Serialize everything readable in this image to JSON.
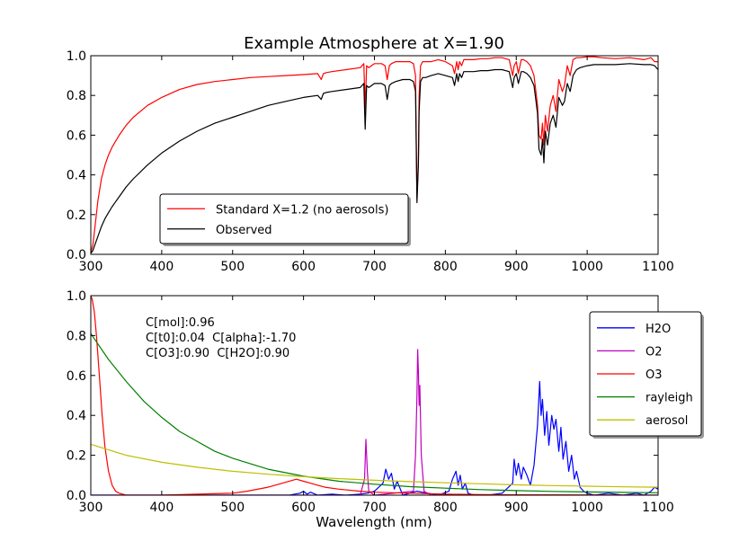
{
  "figure": {
    "title": "Example Atmosphere at X=1.90",
    "xlabel": "Wavelength (nm)"
  },
  "chart_data": [
    {
      "type": "line",
      "title": "Example Atmosphere at X=1.90",
      "xlabel": "",
      "ylabel": "",
      "xlim": [
        300,
        1100
      ],
      "ylim": [
        0,
        1.0
      ],
      "xticks": [
        300,
        400,
        500,
        600,
        700,
        800,
        900,
        1000,
        1100
      ],
      "yticks": [
        0.0,
        0.2,
        0.4,
        0.6,
        0.8,
        1.0
      ],
      "grid": false,
      "legend_position": "lower-center",
      "series": [
        {
          "name": "Standard X=1.2 (no aerosols)",
          "color": "#ff0000",
          "x": [
            300,
            303,
            306,
            310,
            315,
            320,
            325,
            330,
            340,
            350,
            360,
            380,
            400,
            425,
            450,
            475,
            500,
            525,
            550,
            575,
            600,
            620,
            625,
            628,
            632,
            640,
            660,
            680,
            685,
            687,
            689,
            692,
            700,
            710,
            715,
            718,
            721,
            724,
            730,
            740,
            750,
            755,
            758,
            760,
            762,
            763,
            765,
            768,
            772,
            780,
            790,
            800,
            810,
            813,
            816,
            818,
            820,
            823,
            826,
            830,
            840,
            850,
            860,
            870,
            880,
            890,
            895,
            897,
            900,
            903,
            907,
            910,
            915,
            920,
            925,
            930,
            932,
            935,
            937,
            939,
            941,
            944,
            948,
            952,
            956,
            960,
            965,
            968,
            972,
            976,
            980,
            985,
            990,
            1000,
            1010,
            1020,
            1040,
            1060,
            1080,
            1090,
            1095,
            1100
          ],
          "y": [
            0.01,
            0.05,
            0.14,
            0.27,
            0.38,
            0.45,
            0.5,
            0.54,
            0.6,
            0.65,
            0.69,
            0.75,
            0.79,
            0.83,
            0.855,
            0.87,
            0.88,
            0.89,
            0.895,
            0.9,
            0.905,
            0.91,
            0.88,
            0.91,
            0.915,
            0.92,
            0.93,
            0.94,
            0.96,
            0.73,
            0.95,
            0.94,
            0.96,
            0.96,
            0.95,
            0.88,
            0.95,
            0.96,
            0.97,
            0.97,
            0.97,
            0.96,
            0.9,
            0.28,
            0.48,
            0.8,
            0.95,
            0.97,
            0.97,
            0.97,
            0.98,
            0.97,
            0.95,
            0.91,
            0.97,
            0.93,
            0.97,
            0.95,
            0.98,
            0.98,
            0.98,
            0.985,
            0.985,
            0.99,
            0.99,
            0.98,
            0.9,
            0.95,
            0.97,
            0.91,
            0.98,
            0.98,
            0.97,
            0.95,
            0.9,
            0.75,
            0.6,
            0.58,
            0.66,
            0.55,
            0.7,
            0.62,
            0.75,
            0.8,
            0.72,
            0.88,
            0.82,
            0.85,
            0.95,
            0.9,
            0.98,
            0.99,
            0.99,
            0.995,
            0.995,
            0.99,
            0.985,
            0.99,
            0.98,
            0.99,
            0.97,
            0.97
          ]
        },
        {
          "name": "Observed",
          "color": "#000000",
          "x": [
            300,
            303,
            306,
            310,
            315,
            320,
            325,
            330,
            340,
            350,
            360,
            380,
            400,
            425,
            450,
            475,
            500,
            525,
            550,
            575,
            600,
            620,
            625,
            628,
            632,
            640,
            660,
            680,
            685,
            687,
            689,
            692,
            700,
            710,
            715,
            718,
            721,
            724,
            730,
            740,
            750,
            755,
            758,
            760,
            762,
            763,
            765,
            768,
            772,
            780,
            790,
            800,
            810,
            813,
            816,
            818,
            820,
            823,
            826,
            830,
            840,
            850,
            860,
            870,
            880,
            890,
            895,
            897,
            900,
            903,
            907,
            910,
            915,
            920,
            925,
            930,
            932,
            935,
            937,
            939,
            941,
            944,
            948,
            952,
            956,
            960,
            965,
            968,
            972,
            976,
            980,
            985,
            990,
            1000,
            1010,
            1020,
            1040,
            1060,
            1080,
            1090,
            1095,
            1100
          ],
          "y": [
            0.005,
            0.02,
            0.05,
            0.09,
            0.14,
            0.18,
            0.21,
            0.24,
            0.29,
            0.34,
            0.38,
            0.45,
            0.51,
            0.57,
            0.62,
            0.66,
            0.69,
            0.72,
            0.75,
            0.77,
            0.79,
            0.8,
            0.78,
            0.81,
            0.815,
            0.82,
            0.83,
            0.84,
            0.86,
            0.63,
            0.85,
            0.84,
            0.86,
            0.86,
            0.85,
            0.78,
            0.85,
            0.86,
            0.87,
            0.88,
            0.88,
            0.87,
            0.82,
            0.26,
            0.45,
            0.72,
            0.87,
            0.89,
            0.89,
            0.9,
            0.91,
            0.9,
            0.89,
            0.85,
            0.91,
            0.87,
            0.91,
            0.89,
            0.92,
            0.92,
            0.92,
            0.925,
            0.925,
            0.93,
            0.93,
            0.92,
            0.84,
            0.89,
            0.91,
            0.86,
            0.92,
            0.92,
            0.91,
            0.89,
            0.85,
            0.71,
            0.53,
            0.5,
            0.58,
            0.46,
            0.62,
            0.55,
            0.66,
            0.7,
            0.64,
            0.79,
            0.75,
            0.77,
            0.86,
            0.82,
            0.9,
            0.93,
            0.94,
            0.95,
            0.955,
            0.955,
            0.955,
            0.96,
            0.955,
            0.955,
            0.95,
            0.93
          ]
        }
      ]
    },
    {
      "type": "line",
      "title": "",
      "xlabel": "Wavelength (nm)",
      "ylabel": "",
      "xlim": [
        300,
        1100
      ],
      "ylim": [
        0,
        1.0
      ],
      "xticks": [
        300,
        400,
        500,
        600,
        700,
        800,
        900,
        1000,
        1100
      ],
      "yticks": [
        0.0,
        0.2,
        0.4,
        0.6,
        0.8,
        1.0
      ],
      "grid": false,
      "legend_position": "upper-right",
      "annotations": [
        "C[mol]:0.96",
        "C[t0]:0.04  C[alpha]:-1.70",
        "C[O3]:0.90  C[H2O]:0.90"
      ],
      "series": [
        {
          "name": "H2O",
          "color": "#0000ff",
          "x": [
            300,
            500,
            580,
            595,
            600,
            605,
            610,
            620,
            640,
            660,
            680,
            690,
            700,
            712,
            716,
            720,
            724,
            728,
            732,
            740,
            760,
            790,
            805,
            810,
            815,
            818,
            821,
            824,
            828,
            832,
            840,
            860,
            880,
            895,
            897,
            900,
            903,
            907,
            910,
            915,
            920,
            925,
            930,
            933,
            935,
            937,
            940,
            943,
            946,
            950,
            953,
            956,
            960,
            963,
            966,
            970,
            974,
            978,
            982,
            985,
            990,
            995,
            1000,
            1010,
            1030,
            1050,
            1070,
            1080,
            1090,
            1095,
            1100
          ],
          "y": [
            0.0,
            0.0,
            0.0,
            0.01,
            0.02,
            0.005,
            0.015,
            0.0,
            0.005,
            0.0,
            0.005,
            0.01,
            0.02,
            0.06,
            0.13,
            0.08,
            0.11,
            0.03,
            0.07,
            0.0,
            0.02,
            0.0,
            0.02,
            0.08,
            0.12,
            0.05,
            0.1,
            0.03,
            0.06,
            0.01,
            0.0,
            0.0,
            0.01,
            0.06,
            0.18,
            0.1,
            0.16,
            0.08,
            0.14,
            0.1,
            0.05,
            0.15,
            0.35,
            0.57,
            0.4,
            0.48,
            0.3,
            0.42,
            0.25,
            0.4,
            0.33,
            0.38,
            0.22,
            0.34,
            0.18,
            0.27,
            0.12,
            0.2,
            0.08,
            0.12,
            0.04,
            0.02,
            0.01,
            0.0,
            0.01,
            0.0,
            0.01,
            0.0,
            0.02,
            0.04,
            0.03
          ]
        },
        {
          "name": "O2",
          "color": "#bf00bf",
          "x": [
            300,
            680,
            686,
            688,
            690,
            692,
            700,
            755,
            758,
            760,
            761,
            762,
            763,
            764,
            766,
            770,
            780,
            1100
          ],
          "y": [
            0.0,
            0.0,
            0.08,
            0.28,
            0.12,
            0.02,
            0.0,
            0.02,
            0.2,
            0.5,
            0.73,
            0.62,
            0.45,
            0.55,
            0.2,
            0.02,
            0.0,
            0.0
          ],
          "ylim_note": ""
        },
        {
          "name": "O3",
          "color": "#ff0000",
          "x": [
            300,
            302,
            305,
            308,
            310,
            313,
            316,
            320,
            325,
            330,
            335,
            340,
            350,
            400,
            450,
            500,
            520,
            550,
            570,
            590,
            600,
            610,
            620,
            630,
            650,
            680,
            700,
            750,
            800,
            850,
            900,
            1000,
            1100
          ],
          "y": [
            1.0,
            0.98,
            0.92,
            0.8,
            0.7,
            0.55,
            0.4,
            0.24,
            0.12,
            0.05,
            0.02,
            0.01,
            0.0,
            0.0,
            0.005,
            0.01,
            0.02,
            0.04,
            0.06,
            0.08,
            0.07,
            0.06,
            0.05,
            0.04,
            0.03,
            0.02,
            0.015,
            0.01,
            0.005,
            0.003,
            0.002,
            0.001,
            0.0
          ]
        },
        {
          "name": "rayleigh",
          "color": "#008000",
          "x": [
            300,
            325,
            350,
            375,
            400,
            425,
            450,
            475,
            500,
            550,
            600,
            650,
            700,
            750,
            800,
            850,
            900,
            950,
            1000,
            1050,
            1100
          ],
          "y": [
            0.81,
            0.68,
            0.57,
            0.47,
            0.39,
            0.32,
            0.27,
            0.22,
            0.185,
            0.13,
            0.095,
            0.07,
            0.055,
            0.043,
            0.035,
            0.028,
            0.023,
            0.019,
            0.016,
            0.014,
            0.012
          ]
        },
        {
          "name": "aerosol",
          "color": "#bfbf00",
          "x": [
            300,
            350,
            400,
            450,
            500,
            550,
            600,
            650,
            700,
            750,
            800,
            850,
            900,
            950,
            1000,
            1050,
            1100
          ],
          "y": [
            0.255,
            0.2,
            0.165,
            0.14,
            0.12,
            0.105,
            0.093,
            0.083,
            0.075,
            0.068,
            0.062,
            0.057,
            0.052,
            0.048,
            0.045,
            0.042,
            0.04
          ]
        }
      ]
    }
  ]
}
